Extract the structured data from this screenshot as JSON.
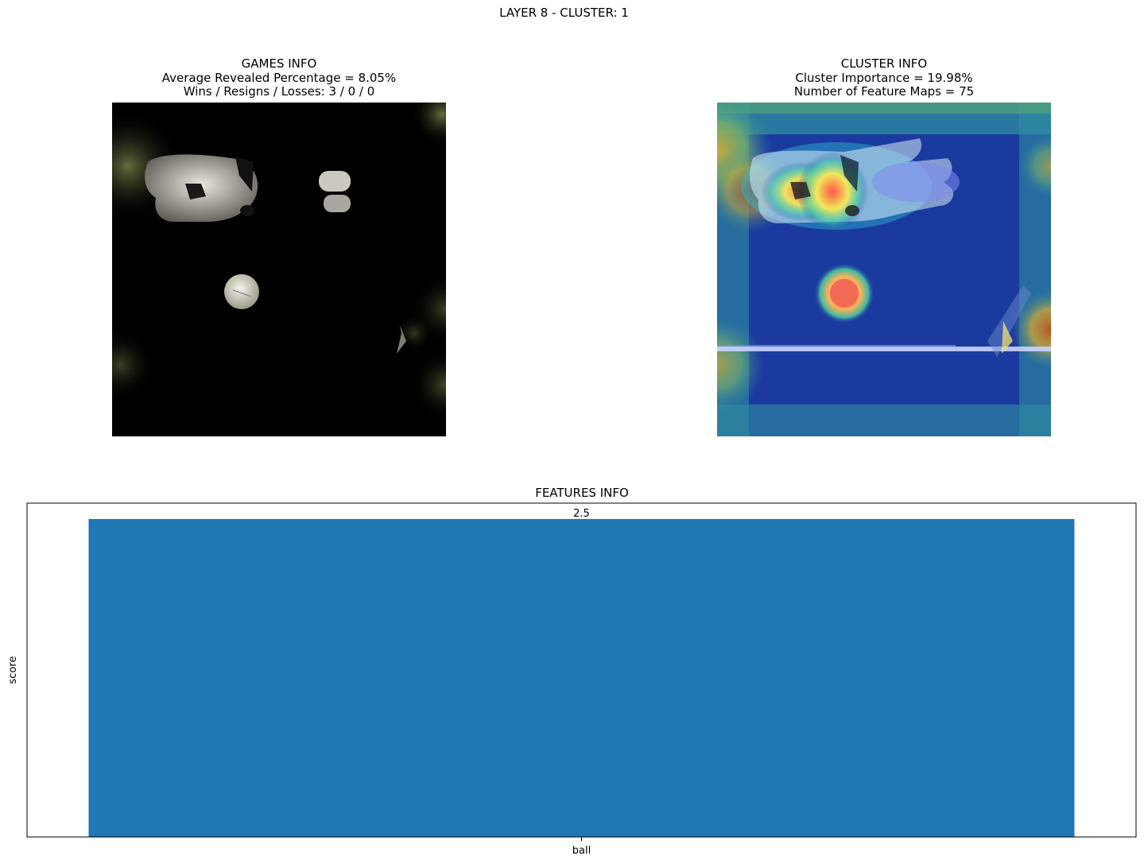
{
  "suptitle": "LAYER 8 - CLUSTER: 1",
  "games_info": {
    "title": "GAMES INFO",
    "line1": "Average Revealed Percentage = 8.05%",
    "line2": "Wins / Resigns / Losses: 3 / 0 / 0"
  },
  "cluster_info": {
    "title": "CLUSTER INFO",
    "line1": "Cluster Importance = 19.98%",
    "line2": "Number of Feature Maps = 75"
  },
  "chart_data": {
    "type": "bar",
    "title": "FEATURES INFO",
    "categories": [
      "ball"
    ],
    "values": [
      2.5
    ],
    "value_labels": [
      "2.5"
    ],
    "xlabel": "",
    "ylabel": "score",
    "ylim": [
      0,
      2.625
    ],
    "grid": false,
    "bar_color": "#1f77b4"
  }
}
